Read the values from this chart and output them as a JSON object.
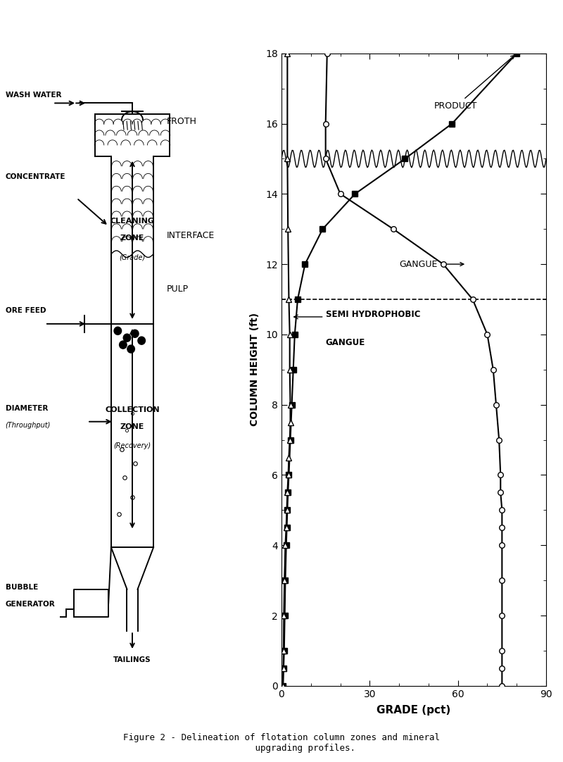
{
  "product_h": [
    0,
    0.5,
    1,
    2,
    3,
    4,
    4.5,
    5,
    5.5,
    6,
    7,
    8,
    9,
    10,
    11,
    12,
    13,
    14,
    15,
    16,
    18
  ],
  "product_g": [
    0.5,
    0.7,
    0.9,
    1.1,
    1.3,
    1.6,
    1.8,
    2.0,
    2.2,
    2.5,
    3.0,
    3.5,
    4.0,
    4.5,
    5.5,
    8.0,
    14.0,
    25.0,
    42.0,
    58.0,
    80.0
  ],
  "gangue_h": [
    0,
    0.5,
    1,
    2,
    3,
    4,
    4.5,
    5,
    5.5,
    6,
    7,
    8,
    9,
    10,
    11,
    12,
    13,
    14,
    15,
    16,
    18
  ],
  "gangue_g": [
    75.0,
    75.0,
    75.0,
    75.0,
    75.0,
    75.0,
    75.0,
    75.0,
    74.5,
    74.5,
    74.0,
    73.0,
    72.0,
    70.0,
    65.0,
    55.0,
    38.0,
    20.0,
    15.0,
    15.0,
    15.5
  ],
  "semi_h": [
    0,
    0.5,
    1,
    2,
    3,
    4,
    4.5,
    5,
    5.5,
    6,
    6.5,
    7,
    7.5,
    8,
    9,
    10,
    11,
    13,
    15,
    18
  ],
  "semi_g": [
    0.5,
    0.6,
    0.7,
    0.8,
    1.0,
    1.3,
    1.6,
    1.8,
    2.0,
    2.3,
    2.5,
    2.8,
    3.0,
    3.0,
    2.8,
    2.8,
    2.5,
    2.2,
    2.0,
    2.0
  ],
  "interface_y": 15.0,
  "feed_y": 11.0,
  "xlim": [
    0,
    90
  ],
  "ylim": [
    0,
    18
  ],
  "xticks": [
    0,
    30,
    60,
    90
  ],
  "yticks": [
    0,
    2,
    4,
    6,
    8,
    10,
    12,
    14,
    16,
    18
  ],
  "xlabel": "GRADE (pct)",
  "ylabel": "COLUMN HEIGHT (ft)",
  "caption": "Figure 2 - Delineation of flotation column zones and mineral\n         upgrading profiles."
}
